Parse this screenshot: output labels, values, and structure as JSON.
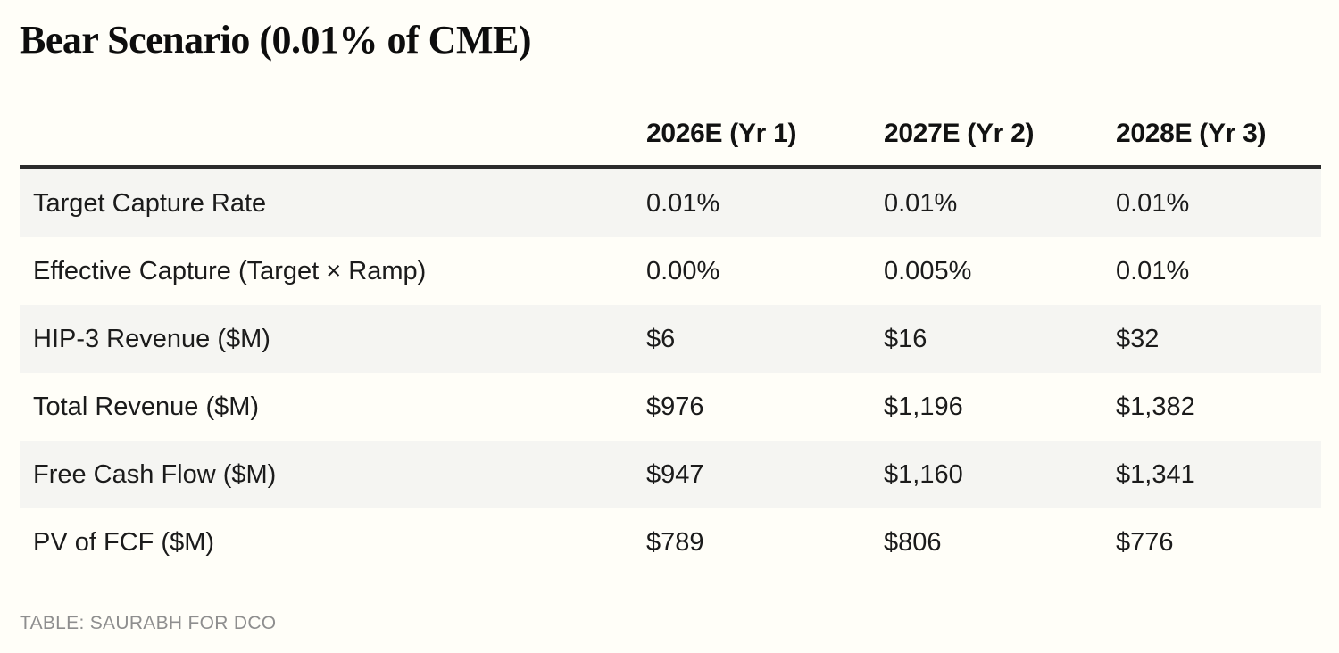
{
  "title": "Bear Scenario (0.01% of CME)",
  "chart_data": {
    "type": "table",
    "title": "Bear Scenario (0.01% of CME)",
    "categories": [
      "2026E (Yr 1)",
      "2027E (Yr 2)",
      "2028E (Yr 3)"
    ],
    "series": [
      {
        "name": "Target Capture Rate",
        "values": [
          "0.01%",
          "0.01%",
          "0.01%"
        ]
      },
      {
        "name": "Effective Capture (Target × Ramp)",
        "values": [
          "0.00%",
          "0.005%",
          "0.01%"
        ]
      },
      {
        "name": "HIP-3 Revenue ($M)",
        "values": [
          "$6",
          "$16",
          "$32"
        ]
      },
      {
        "name": "Total Revenue ($M)",
        "values": [
          "$976",
          "$1,196",
          "$1,382"
        ]
      },
      {
        "name": "Free Cash Flow ($M)",
        "values": [
          "$947",
          "$1,160",
          "$1,341"
        ]
      },
      {
        "name": "PV of FCF ($M)",
        "values": [
          "$789",
          "$806",
          "$776"
        ]
      }
    ],
    "layout": {
      "row_label_column_first": true,
      "zebra_striping": true,
      "header_rule": true
    }
  },
  "footer": {
    "credit": "TABLE: SAURABH FOR DCO"
  },
  "colors": {
    "background": "#FFFEF8",
    "row_stripe": "#F5F5F2",
    "header_rule": "#2B2B2B",
    "text": "#1B1B1B",
    "muted_text": "#8E8E8E"
  }
}
